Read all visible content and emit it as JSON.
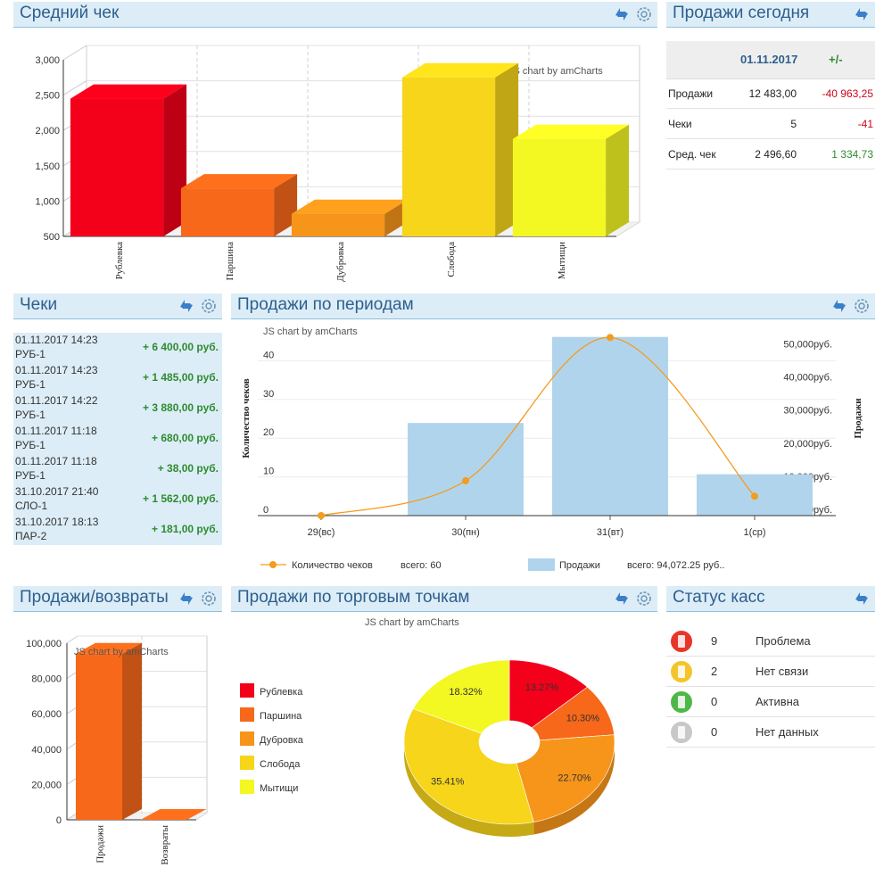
{
  "panels": {
    "avg_check": {
      "title": "Средний чек"
    },
    "today": {
      "title": "Продажи сегодня"
    },
    "checks": {
      "title": "Чеки"
    },
    "periods": {
      "title": "Продажи по периодам"
    },
    "returns": {
      "title": "Продажи/возвраты"
    },
    "points": {
      "title": "Продажи по торговым точкам"
    },
    "status": {
      "title": "Статус касс"
    }
  },
  "credit": "JS chart by amCharts",
  "today": {
    "date": "01.11.2017",
    "diff_header": "+/-",
    "rows": [
      {
        "label": "Продажи",
        "value": "12 483,00",
        "diff": "-40 963,25"
      },
      {
        "label": "Чеки",
        "value": "5",
        "diff": "-41"
      },
      {
        "label": "Сред. чек",
        "value": "2 496,60",
        "diff": "1 334,73"
      }
    ]
  },
  "checks": [
    {
      "date": "01.11.2017  14:23",
      "kassa": "РУБ-1",
      "amount": "+ 6 400,00 руб."
    },
    {
      "date": "01.11.2017  14:23",
      "kassa": "РУБ-1",
      "amount": "+ 1 485,00 руб."
    },
    {
      "date": "01.11.2017  14:22",
      "kassa": "РУБ-1",
      "amount": "+ 3 880,00 руб."
    },
    {
      "date": "01.11.2017  11:18",
      "kassa": "РУБ-1",
      "amount": "+ 680,00 руб."
    },
    {
      "date": "01.11.2017  11:18",
      "kassa": "РУБ-1",
      "amount": "+ 38,00 руб."
    },
    {
      "date": "31.10.2017  21:40",
      "kassa": "СЛО-1",
      "amount": "+ 1 562,00 руб."
    },
    {
      "date": "31.10.2017  18:13",
      "kassa": "ПАР-2",
      "amount": "+ 181,00 руб."
    }
  ],
  "status": [
    {
      "icon": "kassa-red-icon",
      "color": "#e8352a",
      "count": "9",
      "label": "Проблема"
    },
    {
      "icon": "kassa-yellow-icon",
      "color": "#f3c52a",
      "count": "2",
      "label": "Нет связи"
    },
    {
      "icon": "kassa-green-icon",
      "color": "#4db848",
      "count": "0",
      "label": "Активна"
    },
    {
      "icon": "kassa-grey-icon",
      "color": "#c8c8c8",
      "count": "0",
      "label": "Нет данных"
    }
  ],
  "colors": {
    "positive": "#2e8b2e",
    "negative": "#d0021b",
    "header_bg": "#dcedf7",
    "title": "#2f5f8e"
  },
  "chart_data": [
    {
      "id": "avg_check",
      "type": "bar",
      "categories": [
        "Рублевка",
        "Паршина",
        "Дубровка",
        "Слобода",
        "Мытищи"
      ],
      "values": [
        2450,
        1180,
        820,
        2750,
        1880
      ],
      "colors": [
        "#f3001a",
        "#f7681a",
        "#f6951a",
        "#f6d51a",
        "#f3f722"
      ],
      "ylim": [
        500,
        3000
      ],
      "yticks": [
        "500",
        "1,000",
        "1,500",
        "2,000",
        "2,500",
        "3,000"
      ],
      "style": "3d"
    },
    {
      "id": "periods",
      "type": "bar+line",
      "categories": [
        "29(вс)",
        "30(пн)",
        "31(вт)",
        "1(ср)"
      ],
      "series": [
        {
          "name": "Количество чеков",
          "kind": "line",
          "axis": "left",
          "values": [
            0,
            9,
            46,
            5
          ],
          "total_label": "всего: 60",
          "color": "#f39c1e"
        },
        {
          "name": "Продажи",
          "kind": "bar",
          "axis": "right",
          "values": [
            0,
            28000,
            54000,
            12500
          ],
          "total_label": "всего: 94,072.25 руб..",
          "color": "#b1d4ed"
        }
      ],
      "ylabel": "Количество чеков",
      "y2label": "Продажи",
      "yticks": [
        "0",
        "10",
        "20",
        "30",
        "40"
      ],
      "y2ticks": [
        "0руб.",
        "10,000руб.",
        "20,000руб.",
        "30,000руб.",
        "40,000руб.",
        "50,000руб."
      ],
      "ylim": [
        0,
        47
      ],
      "y2lim": [
        0,
        55000
      ]
    },
    {
      "id": "returns",
      "type": "bar",
      "categories": [
        "Продажи",
        "Возвраты"
      ],
      "values": [
        94072.25,
        0
      ],
      "colors": [
        "#f7681a",
        "#f7681a"
      ],
      "ylim": [
        0,
        100000
      ],
      "yticks": [
        "0",
        "20,000",
        "40,000",
        "60,000",
        "80,000",
        "100,000"
      ],
      "style": "3d"
    },
    {
      "id": "points",
      "type": "pie",
      "labels": [
        "Рублевка",
        "Паршина",
        "Дубровка",
        "Слобода",
        "Мытищи"
      ],
      "values": [
        13.27,
        10.3,
        22.7,
        35.41,
        18.32
      ],
      "value_labels": [
        "13.27%",
        "10.30%",
        "22.70%",
        "35.41%",
        "18.32%"
      ],
      "colors": [
        "#f3001a",
        "#f7681a",
        "#f6951a",
        "#f6d51a",
        "#f3f722"
      ],
      "legend": "left",
      "style": "3d-donut"
    }
  ]
}
